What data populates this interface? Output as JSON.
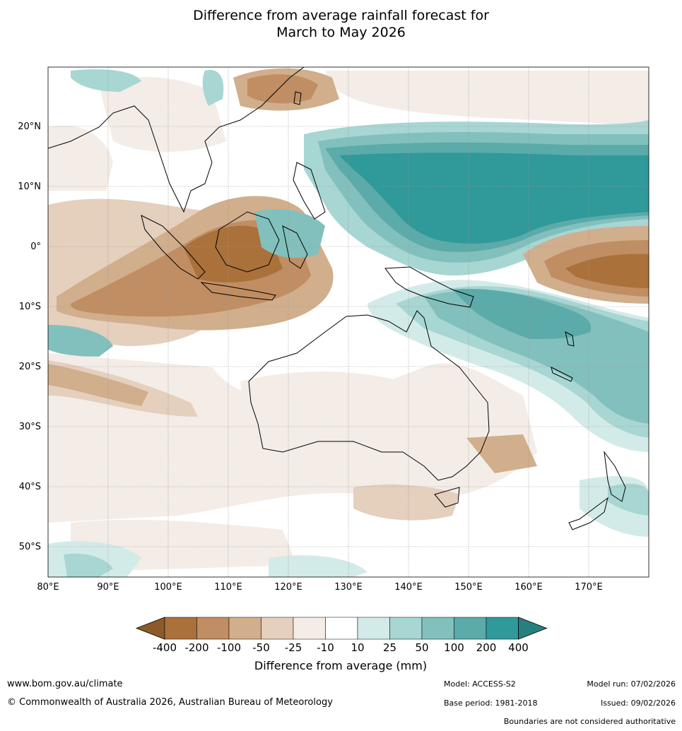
{
  "title": {
    "line1": "Difference from average rainfall forecast for",
    "line2": "March to May 2026"
  },
  "map": {
    "lon_labels": [
      "80°E",
      "90°E",
      "100°E",
      "110°E",
      "120°E",
      "130°E",
      "140°E",
      "150°E",
      "160°E",
      "170°E"
    ],
    "lat_labels": [
      "20°N",
      "10°N",
      "0°",
      "10°S",
      "20°S",
      "30°S",
      "40°S",
      "50°S"
    ]
  },
  "legend": {
    "labels": [
      "-400",
      "-200",
      "-100",
      "-50",
      "-25",
      "-10",
      "10",
      "25",
      "50",
      "100",
      "200",
      "400"
    ],
    "colors": [
      "#8c5a28",
      "#ab713a",
      "#c08e62",
      "#d1ae8c",
      "#e5cfbd",
      "#f4ece6",
      "#ffffff",
      "#d3ebe8",
      "#a7d6d3",
      "#82c0bd",
      "#5aaba9",
      "#30999a",
      "#26807e"
    ],
    "title": "Difference from average (mm)"
  },
  "footer": {
    "url": "www.bom.gov.au/climate",
    "copyright": "© Commonwealth of Australia 2026, Australian Bureau of Meteorology",
    "model": "Model: ACCESS-S2",
    "base_period": "Base period: 1981-2018",
    "model_run": "Model run: 07/02/2026",
    "issued": "Issued: 09/02/2026",
    "disclaimer": "Boundaries are not considered authoritative"
  }
}
